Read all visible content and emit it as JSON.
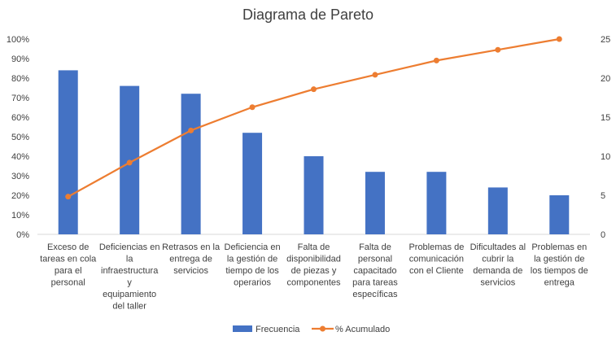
{
  "chart_data": {
    "type": "bar",
    "title": "Diagrama de Pareto",
    "categories": [
      "Exceso de tareas en cola para el personal",
      "Deficiencias en la infraestructura y equipamiento del taller",
      "Retrasos en la entrega de servicios",
      "Deficiencia en la gestión de tiempo de los operarios",
      "Falta de disponibilidad de piezas y componentes",
      "Falta de personal capacitado para tareas específicas",
      "Problemas de comunicación con el Cliente",
      "Dificultades al cubrir la demanda de servicios",
      "Problemas en la gestión de los tiempos de entrega"
    ],
    "category_label_lines": [
      [
        "Exceso de",
        "tareas en cola",
        "para el",
        "personal"
      ],
      [
        "Deficiencias en",
        "la",
        "infraestructura",
        "y",
        "equipamiento",
        "del taller"
      ],
      [
        "Retrasos en la",
        "entrega de",
        "servicios"
      ],
      [
        "Deficiencia en",
        "la gestión de",
        "tiempo de los",
        "operarios"
      ],
      [
        "Falta de",
        "disponibilidad",
        "de piezas y",
        "componentes"
      ],
      [
        "Falta de",
        "personal",
        "capacitado",
        "para tareas",
        "específicas"
      ],
      [
        "Problemas de",
        "comunicación",
        "con el Cliente"
      ],
      [
        "Dificultades al",
        "cubrir la",
        "demanda de",
        "servicios"
      ],
      [
        "Problemas en",
        "la gestión de",
        "los tiempos de",
        "entrega"
      ]
    ],
    "series": [
      {
        "name": "Frecuencia",
        "axis": "secondary",
        "values": [
          21,
          19,
          18,
          13,
          10,
          8,
          8,
          6,
          5
        ]
      },
      {
        "name": "% Acumulado",
        "axis": "primary",
        "values": [
          0.193,
          0.367,
          0.532,
          0.651,
          0.743,
          0.817,
          0.89,
          0.945,
          1.0
        ]
      }
    ],
    "y_left_ticks": [
      "0%",
      "10%",
      "20%",
      "30%",
      "40%",
      "50%",
      "60%",
      "70%",
      "80%",
      "90%",
      "100%"
    ],
    "y_right_ticks": [
      "0",
      "5",
      "10",
      "15",
      "20",
      "25"
    ],
    "y_left_lim": [
      0,
      1
    ],
    "y_right_lim": [
      0,
      25
    ],
    "grid": false,
    "legend_position": "bottom",
    "colors": {
      "bars": "#4472C4",
      "line": "#ED7D31",
      "text": "#404040",
      "axis": "#D9D9D9"
    }
  }
}
